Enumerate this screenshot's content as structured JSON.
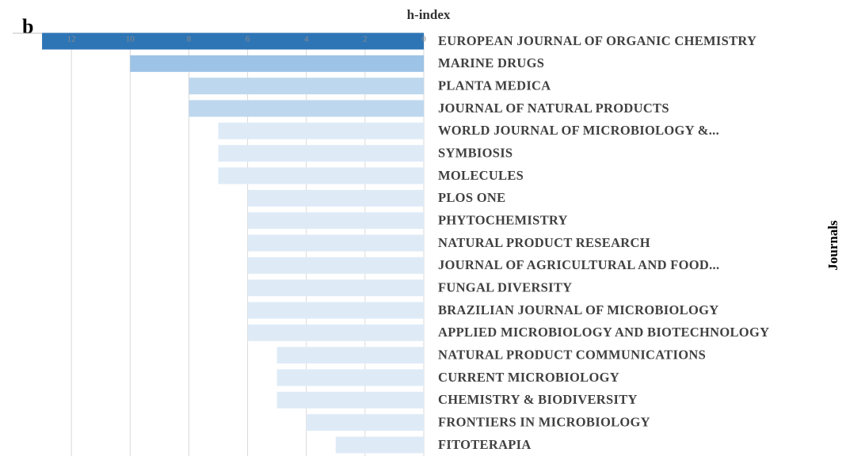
{
  "chart_data": {
    "type": "bar",
    "orientation": "horizontal",
    "panel_label": "b",
    "x_label": "h-index",
    "y_label": "Journals",
    "x_reversed": true,
    "x_axis_position": "top",
    "grid": true,
    "categories": [
      "EUROPEAN JOURNAL OF ORGANIC CHEMISTRY",
      "MARINE DRUGS",
      "PLANTA MEDICA",
      "JOURNAL OF NATURAL PRODUCTS",
      "WORLD JOURNAL OF MICROBIOLOGY &...",
      "SYMBIOSIS",
      "MOLECULES",
      "PLOS ONE",
      "PHYTOCHEMISTRY",
      "NATURAL PRODUCT RESEARCH",
      "JOURNAL OF AGRICULTURAL AND FOOD...",
      "FUNGAL DIVERSITY",
      "BRAZILIAN JOURNAL OF MICROBIOLOGY",
      "APPLIED MICROBIOLOGY AND BIOTECHNOLOGY",
      "NATURAL PRODUCT COMMUNICATIONS",
      "CURRENT MICROBIOLOGY",
      "CHEMISTRY & BIODIVERSITY",
      "FRONTIERS IN MICROBIOLOGY",
      "FITOTERAPIA"
    ],
    "values": [
      13,
      10,
      8,
      8,
      7,
      7,
      7,
      6,
      6,
      6,
      6,
      6,
      6,
      6,
      5,
      5,
      5,
      4,
      3
    ],
    "colors": [
      "#2e75b6",
      "#9dc3e6",
      "#bdd7ee",
      "#bdd7ee",
      "#deebf7",
      "#deebf7",
      "#deebf7",
      "#deebf7",
      "#deebf7",
      "#deebf7",
      "#deebf7",
      "#deebf7",
      "#deebf7",
      "#deebf7",
      "#deebf7",
      "#deebf7",
      "#deebf7",
      "#deebf7",
      "#deebf7"
    ],
    "xlim": [
      0,
      14
    ],
    "xticks": [
      12,
      10,
      8,
      6,
      4,
      2,
      0
    ]
  }
}
